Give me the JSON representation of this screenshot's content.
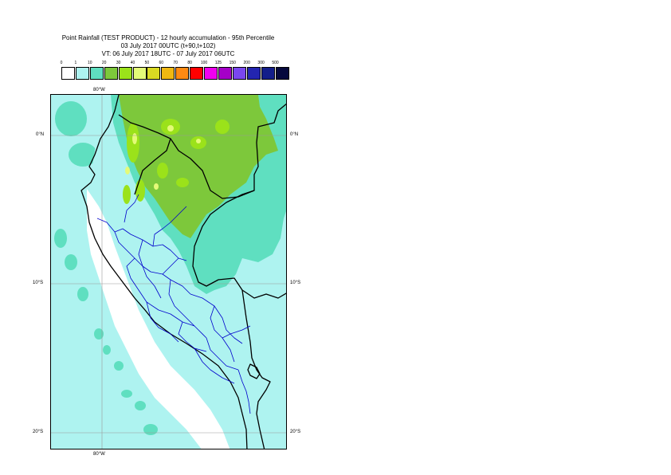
{
  "title": {
    "line1": "Point Rainfall (TEST PRODUCT) - 12 hourly accumulation - 95th Percentile",
    "line2": "03 July 2017 00UTC (t+90,t+102)",
    "line3": "VT: 06 July 2017 18UTC - 07 July 2017 06UTC"
  },
  "legend": {
    "ticks": [
      "0",
      "1",
      "10",
      "20",
      "30",
      "40",
      "50",
      "60",
      "70",
      "80",
      "100",
      "125",
      "150",
      "200",
      "300",
      "500"
    ],
    "colors": [
      "#ffffff",
      "#aef3f0",
      "#5fdfc0",
      "#7dc83b",
      "#9be21a",
      "#e4fa78",
      "#dada22",
      "#f0b812",
      "#ff8a12",
      "#ff0000",
      "#f000f0",
      "#a500c8",
      "#7a46f0",
      "#2325b0",
      "#131e8a",
      "#06093d"
    ]
  },
  "map": {
    "top_lon_label": "80°W",
    "bottom_lon_label": "80°W",
    "lat_labels_left": [
      "0°N",
      "10°S",
      "20°S"
    ],
    "lat_labels_right": [
      "0°N",
      "10°S",
      "20°S"
    ],
    "colors": {
      "ocean": "#aef3f0",
      "light": "#aef3f0",
      "medium": "#5fdfc0",
      "heavy": "#7dc83b",
      "heavier": "#9be21a",
      "heaviest": "#e4fa78",
      "country_border": "#000000",
      "region_border": "#0000cc",
      "gridline": "#9a9a9a"
    }
  }
}
